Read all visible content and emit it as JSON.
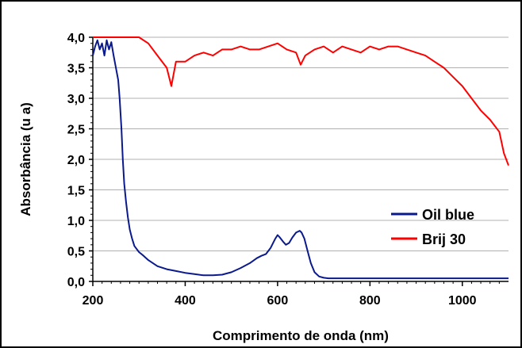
{
  "chart_data": {
    "type": "line",
    "title": "",
    "xlabel": "Comprimento de onda (nm)",
    "ylabel": "Absorbância (u a)",
    "xlim": [
      200,
      1100
    ],
    "ylim": [
      0,
      4
    ],
    "x_ticks": [
      200,
      400,
      600,
      800,
      1000
    ],
    "x_tick_labels": [
      "200",
      "400",
      "600",
      "800",
      "1000"
    ],
    "y_ticks": [
      0,
      0.5,
      1,
      1.5,
      2,
      2.5,
      3,
      3.5,
      4
    ],
    "y_tick_labels": [
      "0,0",
      "0,5",
      "1,0",
      "1,5",
      "2,0",
      "2,5",
      "3,0",
      "3,5",
      "4,0"
    ],
    "grid": "horizontal",
    "legend_position": "right",
    "series": [
      {
        "name": "Oil blue",
        "color": "#0a1a8c",
        "x": [
          200,
          205,
          210,
          215,
          220,
          225,
          230,
          235,
          240,
          245,
          250,
          255,
          258,
          262,
          265,
          268,
          272,
          276,
          280,
          285,
          290,
          300,
          310,
          320,
          340,
          360,
          380,
          400,
          420,
          440,
          460,
          480,
          500,
          520,
          540,
          555,
          565,
          575,
          585,
          595,
          600,
          605,
          612,
          618,
          625,
          632,
          640,
          648,
          652,
          658,
          665,
          672,
          680,
          690,
          700,
          710,
          725,
          750,
          800,
          900,
          1000,
          1100
        ],
        "y": [
          3.7,
          3.85,
          3.95,
          3.8,
          3.9,
          3.7,
          3.95,
          3.8,
          3.92,
          3.7,
          3.5,
          3.3,
          3.0,
          2.5,
          2.0,
          1.6,
          1.3,
          1.05,
          0.85,
          0.7,
          0.58,
          0.48,
          0.42,
          0.35,
          0.25,
          0.2,
          0.17,
          0.14,
          0.12,
          0.1,
          0.1,
          0.11,
          0.15,
          0.22,
          0.3,
          0.38,
          0.42,
          0.45,
          0.55,
          0.7,
          0.76,
          0.72,
          0.65,
          0.6,
          0.63,
          0.72,
          0.8,
          0.83,
          0.8,
          0.7,
          0.5,
          0.3,
          0.15,
          0.08,
          0.06,
          0.05,
          0.05,
          0.05,
          0.05,
          0.05,
          0.05,
          0.05
        ]
      },
      {
        "name": "Brij 30",
        "color": "#ff0000",
        "x": [
          200,
          250,
          300,
          320,
          340,
          360,
          370,
          380,
          400,
          420,
          440,
          460,
          480,
          500,
          520,
          540,
          560,
          580,
          600,
          620,
          640,
          650,
          660,
          680,
          700,
          720,
          740,
          760,
          780,
          800,
          820,
          840,
          860,
          880,
          900,
          920,
          940,
          960,
          980,
          1000,
          1020,
          1040,
          1060,
          1080,
          1090,
          1100
        ],
        "y": [
          4.0,
          4.0,
          4.0,
          3.9,
          3.7,
          3.5,
          3.2,
          3.6,
          3.6,
          3.7,
          3.75,
          3.7,
          3.8,
          3.8,
          3.85,
          3.8,
          3.8,
          3.85,
          3.9,
          3.8,
          3.75,
          3.55,
          3.7,
          3.8,
          3.85,
          3.75,
          3.85,
          3.8,
          3.75,
          3.85,
          3.8,
          3.85,
          3.85,
          3.8,
          3.75,
          3.7,
          3.6,
          3.5,
          3.35,
          3.2,
          3.0,
          2.8,
          2.65,
          2.45,
          2.1,
          1.9
        ]
      }
    ]
  }
}
